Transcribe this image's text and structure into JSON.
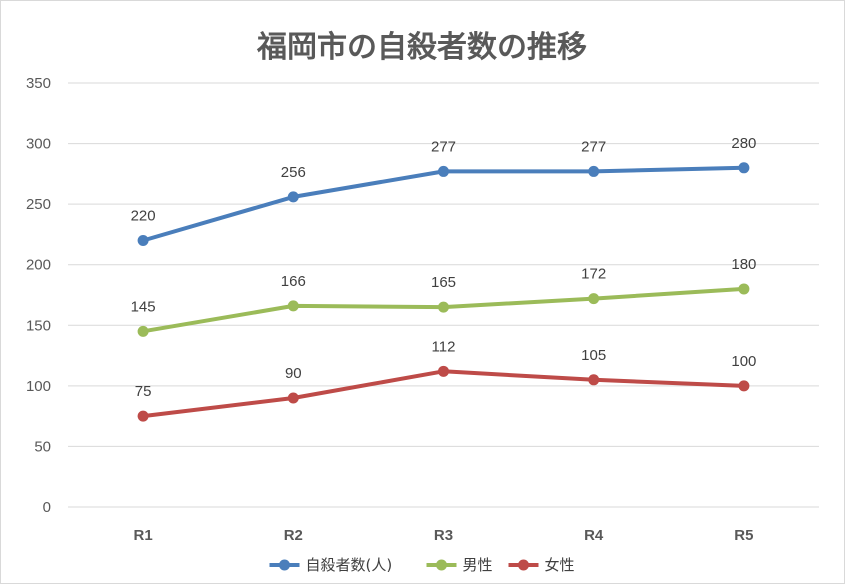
{
  "chart_data": {
    "type": "line",
    "title": "福岡市の自殺者数の推移",
    "categories": [
      "R1",
      "R2",
      "R3",
      "R4",
      "R5"
    ],
    "ylim": [
      0,
      350
    ],
    "yticks": [
      0,
      50,
      100,
      150,
      200,
      250,
      300,
      350
    ],
    "grid": true,
    "legend_position": "bottom",
    "series": [
      {
        "name": "自殺者数(人)",
        "color": "#4a7ebb",
        "values": [
          220,
          256,
          277,
          277,
          280
        ]
      },
      {
        "name": "男性",
        "color": "#9bbb59",
        "values": [
          145,
          166,
          165,
          172,
          180
        ]
      },
      {
        "name": "女性",
        "color": "#be4b48",
        "values": [
          75,
          90,
          112,
          105,
          100
        ]
      }
    ]
  }
}
